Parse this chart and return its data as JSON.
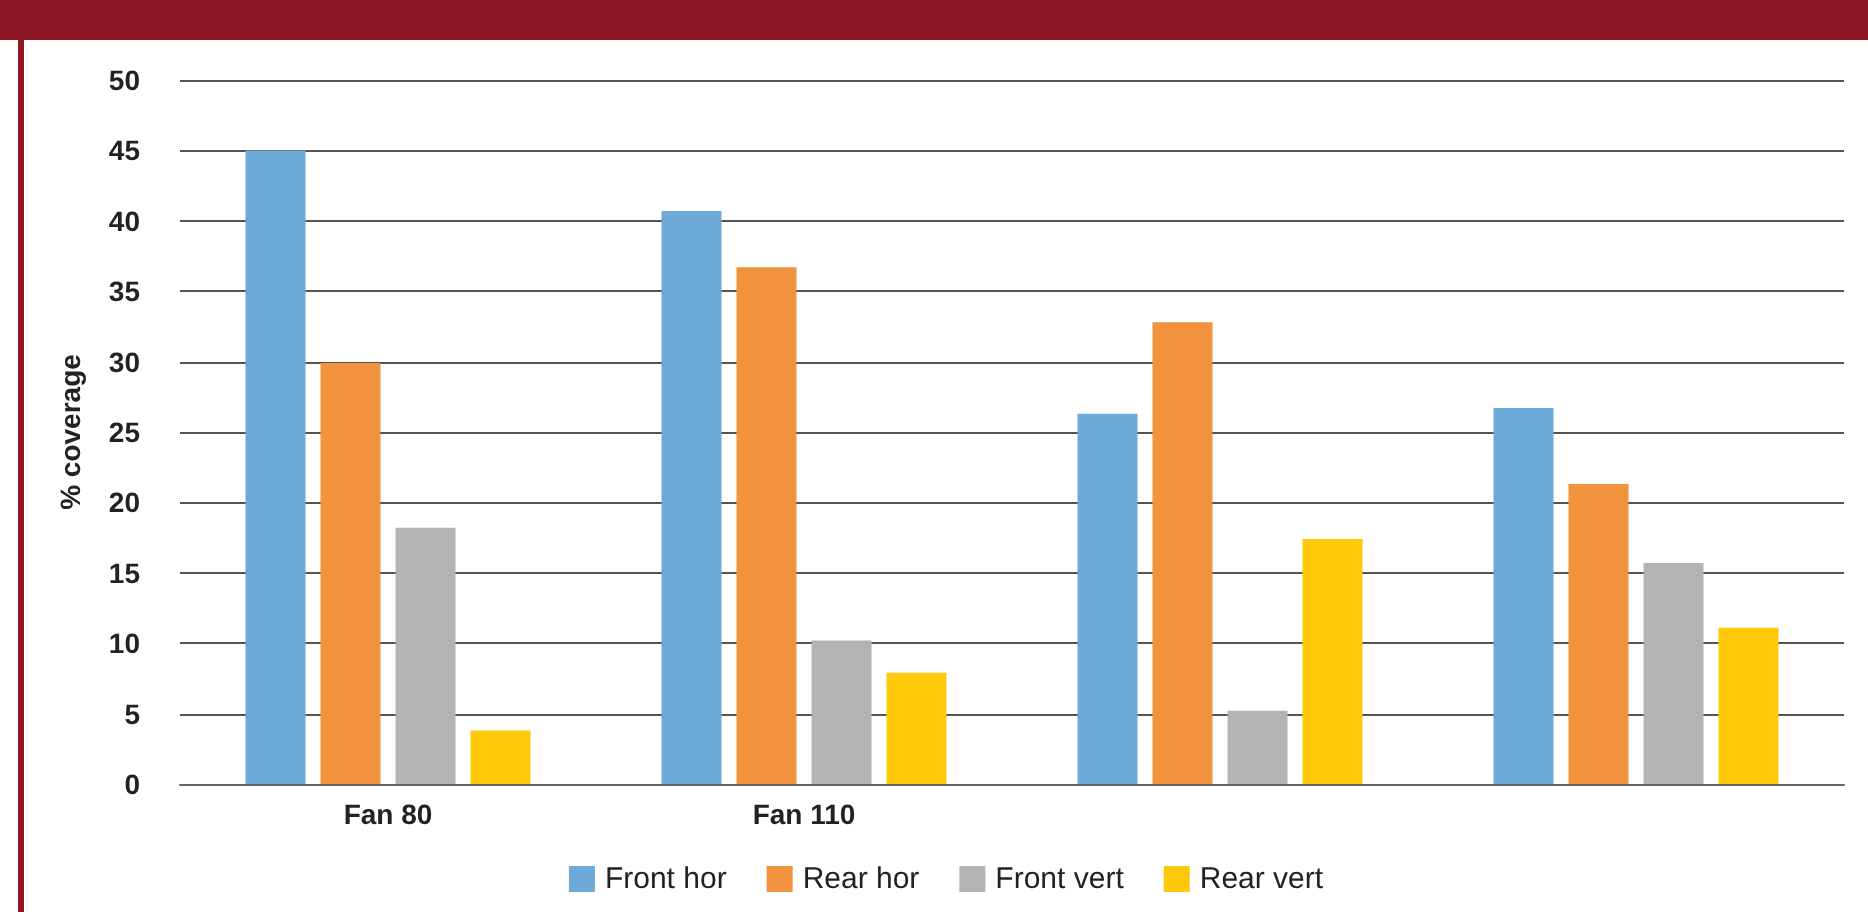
{
  "chart_data": {
    "type": "bar",
    "ylabel": "% coverage",
    "categories": [
      "Fan 80",
      "Fan 110",
      null,
      null
    ],
    "series": [
      {
        "name": "Front hor",
        "color": "#6eaad8",
        "values": [
          45,
          40.7,
          26.3,
          26.7
        ]
      },
      {
        "name": "Rear hor",
        "color": "#f0923e",
        "values": [
          29.9,
          36.7,
          32.8,
          21.3
        ]
      },
      {
        "name": "Front vert",
        "color": "#b3b3b2",
        "values": [
          18.2,
          10.2,
          5.2,
          15.7
        ]
      },
      {
        "name": "Rear vert",
        "color": "#fec80b",
        "values": [
          3.8,
          7.9,
          17.4,
          11.1
        ]
      }
    ],
    "ylim": [
      0,
      50
    ],
    "yticks": [
      0,
      5,
      10,
      15,
      20,
      25,
      30,
      35,
      40,
      45,
      50
    ],
    "grid": "y",
    "legend": "bottom"
  }
}
